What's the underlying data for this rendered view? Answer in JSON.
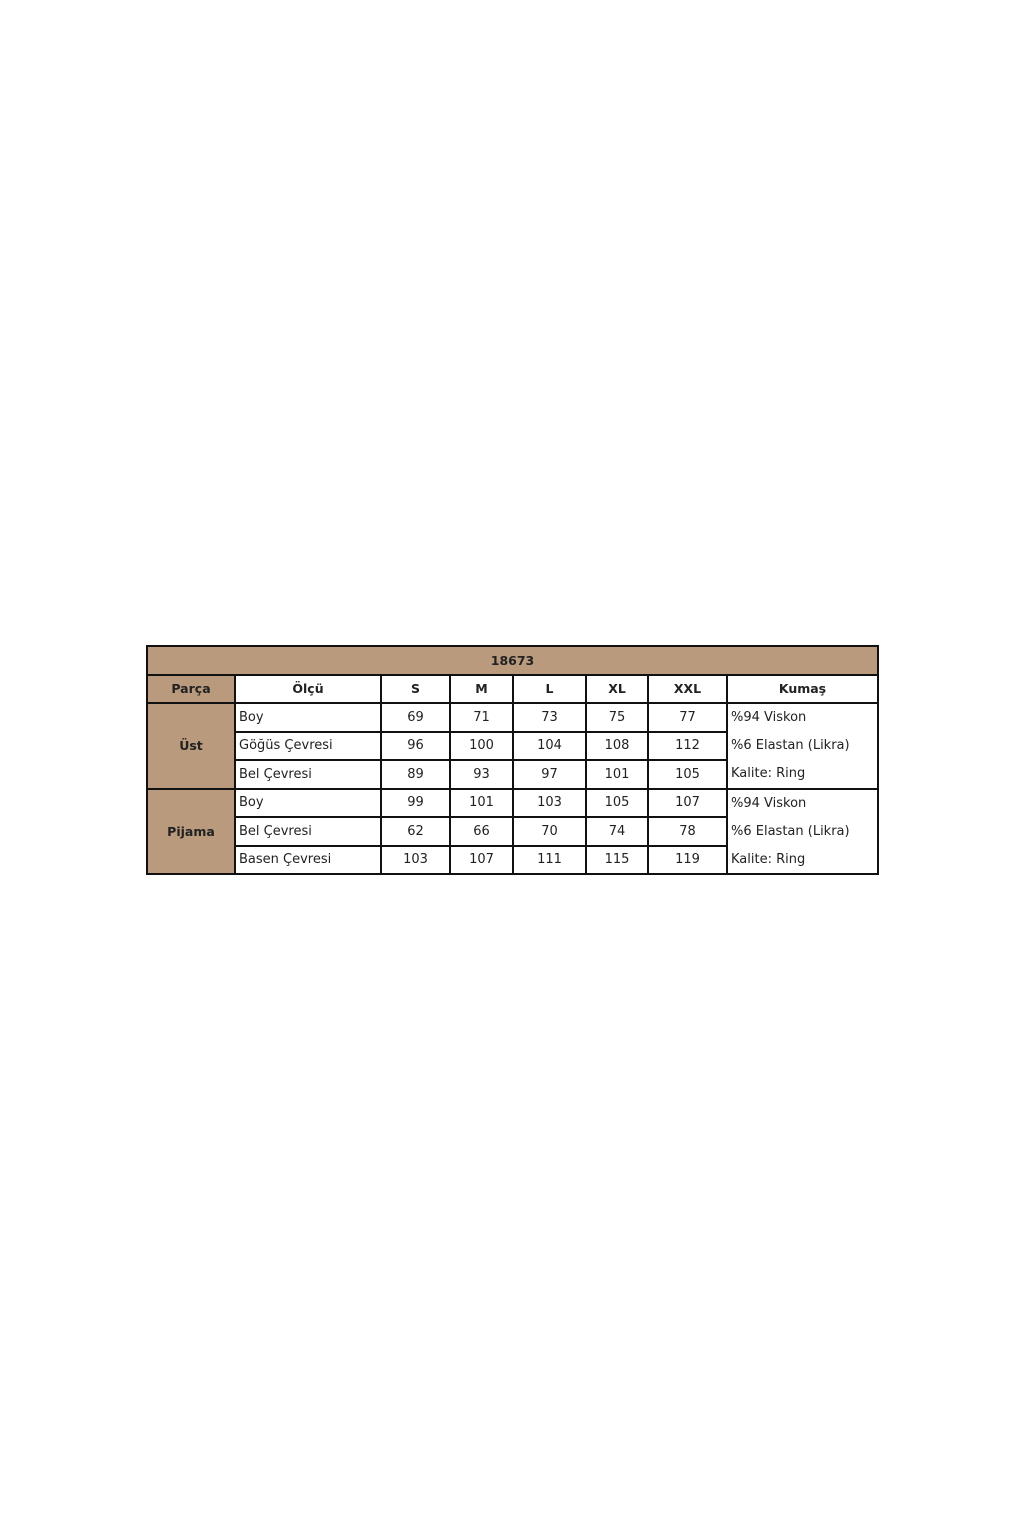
{
  "table": {
    "title": "18673",
    "headers": [
      "Parça",
      "Ölçü",
      "S",
      "M",
      "L",
      "XL",
      "XXL",
      "Kumaş"
    ],
    "colors": {
      "header_fill": "#b99a7d",
      "border": "#111111"
    },
    "groups": [
      {
        "part": "Üst",
        "rows": [
          {
            "measure": "Boy",
            "values": [
              "69",
              "71",
              "73",
              "75",
              "77"
            ]
          },
          {
            "measure": "Göğüs Çevresi",
            "values": [
              "96",
              "100",
              "104",
              "108",
              "112"
            ]
          },
          {
            "measure": "Bel Çevresi",
            "values": [
              "89",
              "93",
              "97",
              "101",
              "105"
            ]
          }
        ],
        "fabric": [
          "%94 Viskon",
          "%6 Elastan (Likra)",
          "Kalite: Ring"
        ]
      },
      {
        "part": "Pijama",
        "rows": [
          {
            "measure": "Boy",
            "values": [
              "99",
              "101",
              "103",
              "105",
              "107"
            ]
          },
          {
            "measure": "Bel Çevresi",
            "values": [
              "62",
              "66",
              "70",
              "74",
              "78"
            ]
          },
          {
            "measure": "Basen Çevresi",
            "values": [
              "103",
              "107",
              "111",
              "115",
              "119"
            ]
          }
        ],
        "fabric": [
          "%94 Viskon",
          "%6 Elastan (Likra)",
          "Kalite: Ring"
        ]
      }
    ]
  }
}
